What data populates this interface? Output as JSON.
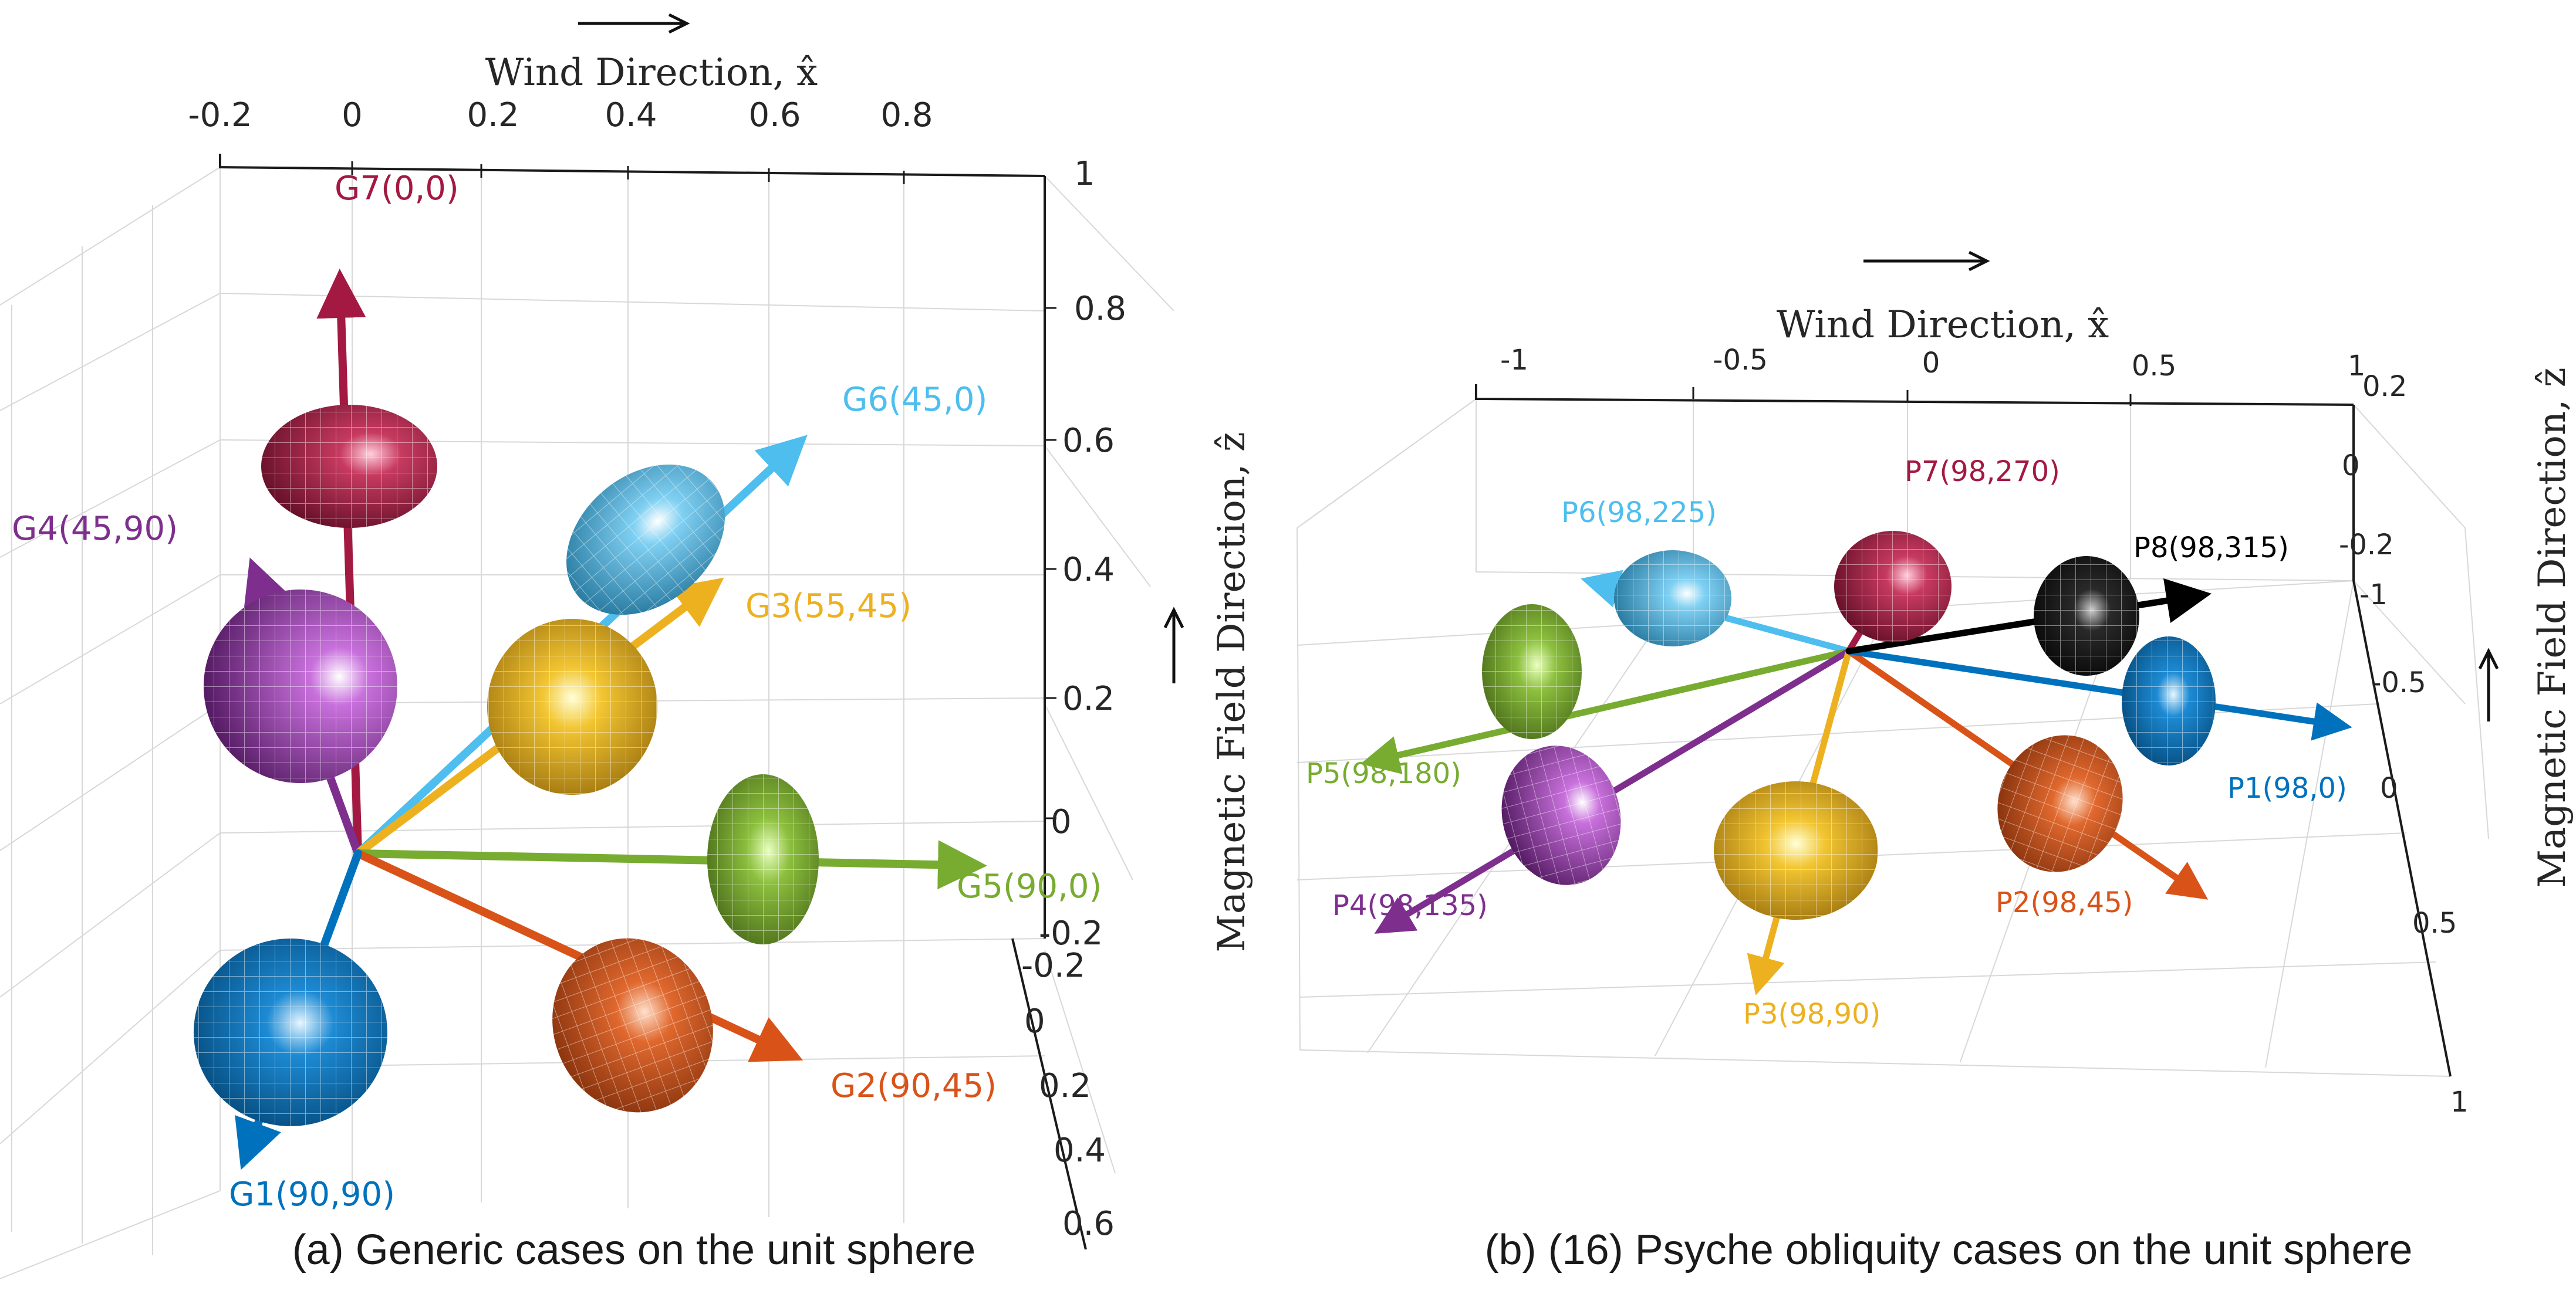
{
  "panel_a": {
    "caption": "(a) Generic cases on the unit sphere",
    "x_axis_label": "Wind Direction, x̂",
    "z_axis_label": "Magnetic Field Direction, ẑ",
    "x_ticks": [
      "-0.2",
      "0",
      "0.2",
      "0.4",
      "0.6",
      "0.8"
    ],
    "z_ticks": [
      "1",
      "0.8",
      "0.6",
      "0.4",
      "0.2",
      "0",
      "-0.2"
    ],
    "y_ticks": [
      "-0.2",
      "0",
      "0.2",
      "0.4",
      "0.6"
    ],
    "cases": [
      {
        "label": "G7(0,0)",
        "color": "#a31942"
      },
      {
        "label": "G6(45,0)",
        "color": "#4dbeee"
      },
      {
        "label": "G4(45,90)",
        "color": "#7e2f8e"
      },
      {
        "label": "G3(55,45)",
        "color": "#edb120"
      },
      {
        "label": "G5(90,0)",
        "color": "#77ac30"
      },
      {
        "label": "G2(90,45)",
        "color": "#d95319"
      },
      {
        "label": "G1(90,90)",
        "color": "#0072bd"
      }
    ]
  },
  "panel_b": {
    "caption": "(b) (16) Psyche obliquity cases on the unit sphere",
    "x_axis_label": "Wind Direction, x̂",
    "z_axis_label": "Magnetic Field Direction, ẑ",
    "x_ticks": [
      "-1",
      "-0.5",
      "0",
      "0.5",
      "1"
    ],
    "z_ticks": [
      "0.2",
      "0",
      "-0.2"
    ],
    "y_ticks": [
      "-1",
      "-0.5",
      "0",
      "0.5",
      "1"
    ],
    "cases": [
      {
        "label": "P7(98,270)",
        "color": "#a31942"
      },
      {
        "label": "P6(98,225)",
        "color": "#4dbeee"
      },
      {
        "label": "P8(98,315)",
        "color": "#000000"
      },
      {
        "label": "P5(98,180)",
        "color": "#77ac30"
      },
      {
        "label": "P1(98,0)",
        "color": "#0072bd"
      },
      {
        "label": "P4(98,135)",
        "color": "#7e2f8e"
      },
      {
        "label": "P2(98,45)",
        "color": "#d95319"
      },
      {
        "label": "P3(98,90)",
        "color": "#edb120"
      }
    ]
  }
}
